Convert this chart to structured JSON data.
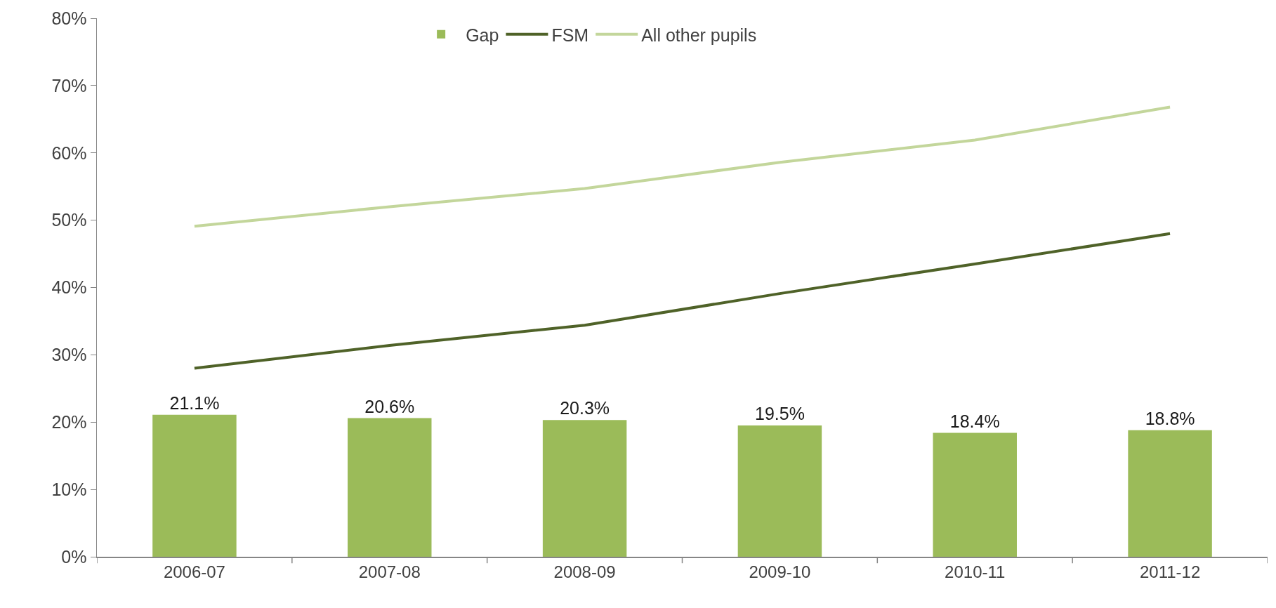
{
  "chart_data": {
    "type": "bar",
    "categories": [
      "2006-07",
      "2007-08",
      "2008-09",
      "2009-10",
      "2010-11",
      "2011-12"
    ],
    "series": [
      {
        "name": "Gap",
        "color": "#9bbb59",
        "values": [
          21.1,
          20.6,
          20.3,
          19.5,
          18.4,
          18.8
        ],
        "value_labels": [
          "21.1%",
          "20.6%",
          "20.3%",
          "19.5%",
          "18.4%",
          "18.8%"
        ]
      },
      {
        "name": "FSM",
        "type": "line",
        "color": "#4f6228",
        "values": [
          28.0,
          31.4,
          34.4,
          39.1,
          43.5,
          48.0
        ]
      },
      {
        "name": "All other pupils",
        "type": "line",
        "color": "#c3d69b",
        "values": [
          49.1,
          52.0,
          54.7,
          58.6,
          61.9,
          66.8
        ]
      }
    ],
    "ylim": [
      0,
      80
    ],
    "yticks": [
      {
        "value": 0,
        "label": "0%"
      },
      {
        "value": 10,
        "label": "10%"
      },
      {
        "value": 20,
        "label": "20%"
      },
      {
        "value": 30,
        "label": "30%"
      },
      {
        "value": 40,
        "label": "40%"
      },
      {
        "value": 50,
        "label": "50%"
      },
      {
        "value": 60,
        "label": "60%"
      },
      {
        "value": 70,
        "label": "70%"
      },
      {
        "value": 80,
        "label": "80%"
      }
    ],
    "legend": "top",
    "line_style": "solid"
  }
}
